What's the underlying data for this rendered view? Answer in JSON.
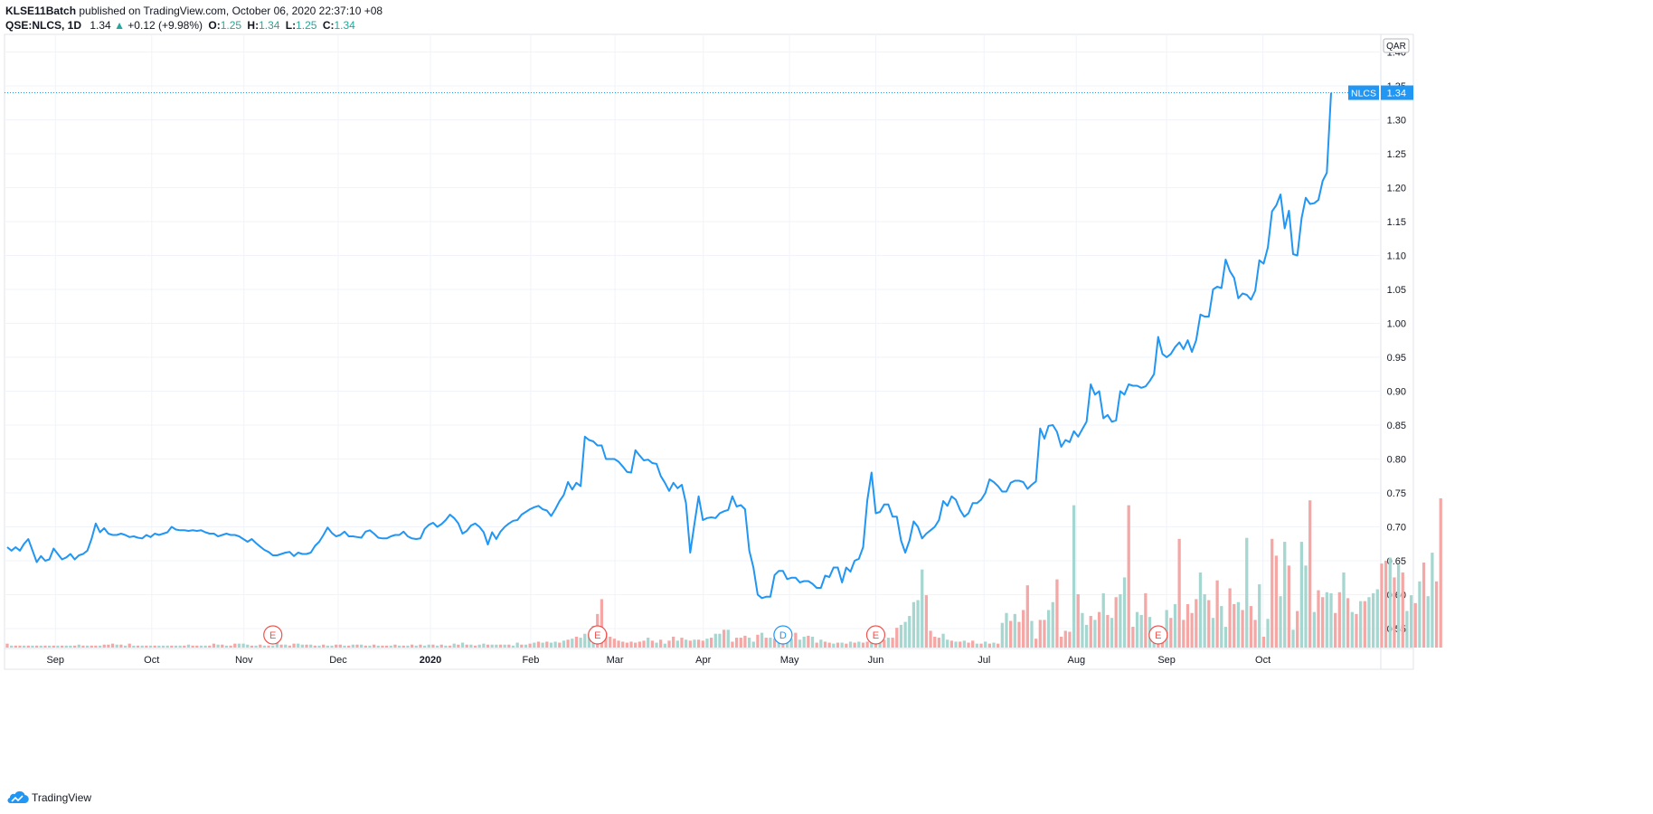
{
  "header": {
    "publisher": "KLSE11Batch",
    "published_text": "published on TradingView.com, October 06, 2020 22:37:10 +08",
    "symbol": "QSE:NLCS, 1D",
    "last": "1.34",
    "change": "+0.12 (+9.98%)",
    "o_label": "O:",
    "o_val": "1.25",
    "h_label": "H:",
    "h_val": "1.34",
    "l_label": "L:",
    "l_val": "1.25",
    "c_label": "C:",
    "c_val": "1.34"
  },
  "footer": {
    "brand": "TradingView"
  },
  "colors": {
    "line": "#2196f3",
    "up": "#26a69a",
    "down": "#ef5350",
    "up_vol": "#a5d6d0",
    "down_vol": "#f4a7a5",
    "grid": "#f0f3fa"
  },
  "chart_data": {
    "type": "line",
    "currency": "QAR",
    "symbol_tag": "NLCS",
    "last_price_label": "1.34",
    "y_ticks": [
      "1.40",
      "1.35",
      "1.30",
      "1.25",
      "1.20",
      "1.15",
      "1.10",
      "1.05",
      "1.00",
      "0.95",
      "0.90",
      "0.85",
      "0.80",
      "0.75",
      "0.70",
      "0.65",
      "0.60",
      "0.55"
    ],
    "ylim": [
      0.522,
      1.41
    ],
    "x_ticks": [
      "Sep",
      "Oct",
      "Nov",
      "Dec",
      "2020",
      "Feb",
      "Mar",
      "Apr",
      "May",
      "Jun",
      "Jul",
      "Aug",
      "Sep",
      "Oct"
    ],
    "series": [
      {
        "values": [
          0.67,
          0.665,
          0.67,
          0.665,
          0.675,
          0.682,
          0.665,
          0.648,
          0.657,
          0.65,
          0.652,
          0.668,
          0.66,
          0.652,
          0.655,
          0.66,
          0.652,
          0.658,
          0.66,
          0.665,
          0.682,
          0.705,
          0.692,
          0.698,
          0.69,
          0.688,
          0.688,
          0.69,
          0.688,
          0.685,
          0.686,
          0.684,
          0.683,
          0.688,
          0.685,
          0.69,
          0.688,
          0.69,
          0.692,
          0.7,
          0.696,
          0.695,
          0.695,
          0.694,
          0.695,
          0.694,
          0.695,
          0.692,
          0.69,
          0.69,
          0.686,
          0.688,
          0.69,
          0.688,
          0.688,
          0.686,
          0.682,
          0.678,
          0.682,
          0.676,
          0.671,
          0.666,
          0.663,
          0.658,
          0.658,
          0.66,
          0.662,
          0.663,
          0.657,
          0.662,
          0.66,
          0.66,
          0.662,
          0.672,
          0.678,
          0.688,
          0.699,
          0.691,
          0.686,
          0.688,
          0.693,
          0.686,
          0.686,
          0.685,
          0.684,
          0.693,
          0.695,
          0.69,
          0.684,
          0.683,
          0.683,
          0.686,
          0.688,
          0.688,
          0.693,
          0.686,
          0.683,
          0.682,
          0.683,
          0.697,
          0.703,
          0.706,
          0.7,
          0.704,
          0.71,
          0.718,
          0.713,
          0.705,
          0.69,
          0.694,
          0.702,
          0.705,
          0.7,
          0.692,
          0.674,
          0.692,
          0.682,
          0.693,
          0.7,
          0.705,
          0.709,
          0.71,
          0.718,
          0.722,
          0.726,
          0.729,
          0.731,
          0.726,
          0.724,
          0.716,
          0.726,
          0.738,
          0.747,
          0.766,
          0.755,
          0.765,
          0.76,
          0.833,
          0.828,
          0.826,
          0.82,
          0.82,
          0.8,
          0.8,
          0.8,
          0.796,
          0.789,
          0.781,
          0.78,
          0.813,
          0.805,
          0.798,
          0.799,
          0.794,
          0.793,
          0.775,
          0.765,
          0.753,
          0.765,
          0.757,
          0.762,
          0.735,
          0.662,
          0.705,
          0.745,
          0.71,
          0.713,
          0.714,
          0.713,
          0.72,
          0.723,
          0.725,
          0.745,
          0.73,
          0.732,
          0.726,
          0.665,
          0.64,
          0.6,
          0.595,
          0.597,
          0.597,
          0.629,
          0.635,
          0.635,
          0.623,
          0.625,
          0.625,
          0.618,
          0.62,
          0.62,
          0.616,
          0.61,
          0.61,
          0.628,
          0.626,
          0.64,
          0.64,
          0.618,
          0.64,
          0.634,
          0.65,
          0.653,
          0.67,
          0.739,
          0.78,
          0.72,
          0.722,
          0.733,
          0.733,
          0.715,
          0.715,
          0.68,
          0.662,
          0.68,
          0.708,
          0.7,
          0.683,
          0.69,
          0.695,
          0.7,
          0.71,
          0.738,
          0.731,
          0.745,
          0.74,
          0.725,
          0.715,
          0.72,
          0.735,
          0.735,
          0.74,
          0.75,
          0.77,
          0.766,
          0.76,
          0.752,
          0.752,
          0.765,
          0.768,
          0.768,
          0.766,
          0.756,
          0.762,
          0.767,
          0.845,
          0.83,
          0.849,
          0.85,
          0.84,
          0.818,
          0.828,
          0.825,
          0.841,
          0.833,
          0.844,
          0.855,
          0.91,
          0.895,
          0.9,
          0.86,
          0.865,
          0.855,
          0.857,
          0.9,
          0.895,
          0.91,
          0.908,
          0.908,
          0.905,
          0.907,
          0.915,
          0.925,
          0.98,
          0.955,
          0.95,
          0.955,
          0.965,
          0.972,
          0.962,
          0.975,
          0.958,
          0.975,
          1.013,
          1.01,
          1.01,
          1.05,
          1.054,
          1.052,
          1.094,
          1.077,
          1.067,
          1.037,
          1.044,
          1.042,
          1.035,
          1.048,
          1.093,
          1.088,
          1.112,
          1.165,
          1.174,
          1.19,
          1.14,
          1.166,
          1.102,
          1.1,
          1.155,
          1.185,
          1.176,
          1.177,
          1.182,
          1.21,
          1.222,
          1.34
        ]
      }
    ],
    "volume": [
      4,
      2,
      2,
      2,
      2,
      2,
      2,
      2,
      2,
      2,
      2,
      2,
      2,
      2,
      2,
      2,
      2,
      3,
      2,
      2,
      2,
      2,
      2,
      3,
      3,
      4,
      3,
      3,
      2,
      4,
      2,
      2,
      2,
      2,
      2,
      2,
      2,
      2,
      2,
      2,
      2,
      2,
      2,
      3,
      2,
      2,
      2,
      2,
      2,
      4,
      3,
      3,
      2,
      2,
      4,
      4,
      4,
      3,
      2,
      2,
      3,
      2,
      2,
      2,
      5,
      3,
      3,
      2,
      4,
      4,
      3,
      3,
      3,
      2,
      2,
      3,
      2,
      2,
      3,
      3,
      2,
      2,
      3,
      3,
      3,
      2,
      2,
      3,
      2,
      2,
      2,
      2,
      3,
      2,
      2,
      2,
      3,
      2,
      3,
      2,
      3,
      3,
      2,
      3,
      2,
      2,
      4,
      3,
      5,
      3,
      3,
      2,
      3,
      4,
      3,
      3,
      3,
      3,
      3,
      3,
      2,
      5,
      3,
      3,
      4,
      5,
      6,
      5,
      6,
      5,
      6,
      5,
      7,
      8,
      9,
      11,
      10,
      14,
      14,
      22,
      34,
      49,
      15,
      11,
      9,
      7,
      6,
      5,
      6,
      5,
      6,
      7,
      10,
      7,
      5,
      8,
      4,
      7,
      11,
      7,
      10,
      8,
      7,
      8,
      8,
      7,
      9,
      10,
      14,
      14,
      18,
      18,
      6,
      10,
      10,
      12,
      10,
      6,
      13,
      15,
      10,
      10,
      9,
      10,
      12,
      14,
      9,
      15,
      8,
      11,
      12,
      11,
      5,
      8,
      6,
      5,
      4,
      5,
      5,
      4,
      6,
      5,
      6,
      5,
      6,
      6,
      6,
      12,
      8,
      10,
      10,
      20,
      23,
      26,
      32,
      46,
      48,
      79,
      53,
      17,
      11,
      10,
      14,
      8,
      7,
      6,
      6,
      7,
      5,
      7,
      4,
      4,
      6,
      4,
      5,
      4,
      25,
      35,
      27,
      34,
      26,
      38,
      63,
      27,
      9,
      28,
      28,
      38,
      46,
      69,
      11,
      17,
      16,
      144,
      54,
      35,
      23,
      32,
      28,
      36,
      55,
      33,
      30,
      51,
      54,
      71,
      144,
      21,
      36,
      33,
      55,
      31,
      18,
      22,
      19,
      38,
      30,
      44,
      110,
      28,
      44,
      35,
      49,
      76,
      54,
      48,
      30,
      68,
      42,
      21,
      60,
      44,
      46,
      38,
      111,
      42,
      28,
      64,
      11,
      29,
      110,
      93,
      52,
      107,
      83,
      18,
      37,
      107,
      83,
      149,
      36,
      58,
      51,
      56,
      55,
      35,
      56,
      76,
      50,
      36,
      34,
      47,
      47,
      51,
      55,
      59,
      85,
      88,
      91,
      71,
      84,
      76,
      37,
      53,
      45,
      67,
      86,
      52,
      96,
      67,
      151
    ],
    "volume_colors": [
      "d",
      "u",
      "d",
      "d",
      "u",
      "d",
      "u",
      "d",
      "u",
      "d",
      "u",
      "d",
      "u",
      "d",
      "u",
      "u",
      "d",
      "u",
      "d",
      "u",
      "d",
      "d",
      "u",
      "d",
      "d",
      "d",
      "u",
      "d",
      "u",
      "d",
      "u",
      "d",
      "u",
      "d",
      "u",
      "d",
      "u",
      "u",
      "u",
      "d",
      "u",
      "u",
      "d",
      "u",
      "d",
      "d",
      "u",
      "u",
      "d",
      "d",
      "u",
      "d",
      "u",
      "d",
      "d",
      "u",
      "u",
      "u",
      "d",
      "u",
      "d",
      "u",
      "d",
      "u",
      "u",
      "d",
      "u",
      "d",
      "d",
      "u",
      "u",
      "d",
      "u",
      "d",
      "u",
      "d",
      "u",
      "u",
      "d",
      "d",
      "u",
      "d",
      "u",
      "d",
      "u",
      "d",
      "u",
      "d",
      "u",
      "d",
      "d",
      "u",
      "d",
      "u",
      "d",
      "u",
      "d",
      "u",
      "d",
      "u",
      "u",
      "d",
      "u",
      "d",
      "u",
      "d",
      "u",
      "d",
      "u",
      "d",
      "u",
      "d",
      "u",
      "u",
      "d",
      "u",
      "u",
      "d",
      "u",
      "d",
      "u",
      "u",
      "d",
      "u",
      "d",
      "u",
      "d",
      "u",
      "d",
      "u",
      "u",
      "d",
      "u",
      "d",
      "u",
      "d",
      "u",
      "u",
      "u",
      "u",
      "d",
      "d",
      "d",
      "d",
      "d",
      "d",
      "d",
      "d",
      "d",
      "d",
      "d",
      "d",
      "u",
      "d",
      "u",
      "d",
      "u",
      "d",
      "d",
      "u",
      "d",
      "u",
      "d",
      "u",
      "d",
      "d",
      "u",
      "d",
      "u",
      "u",
      "d",
      "u",
      "d",
      "d",
      "d",
      "d",
      "u",
      "u",
      "d",
      "u",
      "d",
      "u",
      "d",
      "u",
      "d",
      "u",
      "u",
      "d",
      "u",
      "u",
      "d",
      "u",
      "d",
      "u",
      "d",
      "d",
      "u",
      "d",
      "u",
      "d",
      "u",
      "d",
      "u",
      "d",
      "d",
      "u",
      "d",
      "u",
      "d",
      "u",
      "d",
      "d",
      "u",
      "u",
      "u",
      "u",
      "u",
      "u",
      "d",
      "d",
      "d",
      "d",
      "u",
      "u",
      "d",
      "u",
      "d",
      "u",
      "d",
      "d",
      "u",
      "d",
      "u",
      "d",
      "u",
      "d",
      "u",
      "u",
      "d",
      "u",
      "d",
      "d",
      "d",
      "u",
      "d",
      "d",
      "d",
      "u",
      "u",
      "d",
      "d",
      "d",
      "d",
      "u",
      "d",
      "u",
      "u",
      "d",
      "u",
      "d",
      "u",
      "d",
      "u",
      "d",
      "u",
      "u",
      "d",
      "d",
      "u",
      "u",
      "d",
      "u",
      "u",
      "d",
      "d",
      "u",
      "d",
      "u",
      "d",
      "d",
      "d",
      "d",
      "d",
      "u",
      "u",
      "d",
      "u",
      "d",
      "u",
      "u",
      "d",
      "d",
      "u",
      "d",
      "u",
      "d",
      "d",
      "u",
      "d",
      "u",
      "d",
      "d",
      "u",
      "u",
      "d",
      "u",
      "d",
      "u",
      "u",
      "d",
      "u",
      "d",
      "d",
      "u",
      "u",
      "d",
      "d",
      "u",
      "d",
      "u",
      "d",
      "u",
      "d",
      "u",
      "u",
      "u",
      "d",
      "d",
      "u",
      "d",
      "u",
      "d",
      "u",
      "u",
      "d",
      "u",
      "d",
      "u",
      "u"
    ],
    "events": [
      {
        "letter": "E",
        "kind": "earnings",
        "index": 63
      },
      {
        "letter": "E",
        "kind": "earnings",
        "index": 140
      },
      {
        "letter": "D",
        "kind": "dividend",
        "index": 184
      },
      {
        "letter": "E",
        "kind": "earnings",
        "index": 206
      },
      {
        "letter": "E",
        "kind": "earnings",
        "index": 273
      }
    ],
    "grid": true
  }
}
